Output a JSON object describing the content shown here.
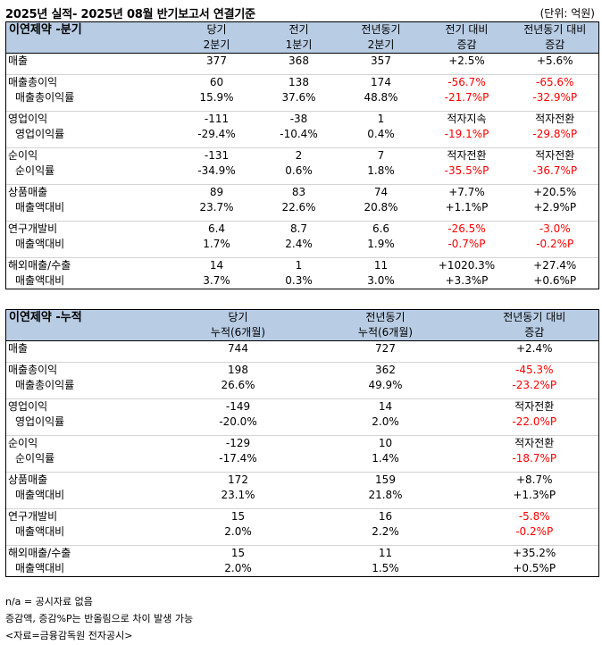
{
  "title": "2025년 실적- 2025년 08월 반기보고서 연결기준",
  "unit": "(단위: 억원)",
  "colors": {
    "header_bg": "#b8cce4",
    "negative": "#ff0000",
    "border": "#000000"
  },
  "table1": {
    "section": "이연제약 -분기",
    "headers": [
      {
        "top": "당기",
        "bottom": "2분기"
      },
      {
        "top": "전기",
        "bottom": "1분기"
      },
      {
        "top": "전년동기",
        "bottom": "2분기"
      },
      {
        "top": "전기 대비",
        "bottom": "증감"
      },
      {
        "top": "전년동기 대비",
        "bottom": "증감"
      }
    ],
    "groups": [
      {
        "rows": [
          {
            "label": "매출",
            "values": [
              "377",
              "368",
              "357",
              "+2.5%",
              "+5.6%"
            ],
            "neg": [
              false,
              false,
              false,
              false,
              false
            ]
          }
        ]
      },
      {
        "rows": [
          {
            "label": "매출총이익",
            "values": [
              "60",
              "138",
              "174",
              "-56.7%",
              "-65.6%"
            ],
            "neg": [
              false,
              false,
              false,
              true,
              true
            ]
          },
          {
            "label": "매출총이익률",
            "values": [
              "15.9%",
              "37.6%",
              "48.8%",
              "-21.7%P",
              "-32.9%P"
            ],
            "neg": [
              false,
              false,
              false,
              true,
              true
            ]
          }
        ]
      },
      {
        "rows": [
          {
            "label": "영업이익",
            "values": [
              "-111",
              "-38",
              "1",
              "적자지속",
              "적자전환"
            ],
            "neg": [
              false,
              false,
              false,
              false,
              false
            ]
          },
          {
            "label": "영업이익률",
            "values": [
              "-29.4%",
              "-10.4%",
              "0.4%",
              "-19.1%P",
              "-29.8%P"
            ],
            "neg": [
              false,
              false,
              false,
              true,
              true
            ]
          }
        ]
      },
      {
        "rows": [
          {
            "label": "순이익",
            "values": [
              "-131",
              "2",
              "7",
              "적자전환",
              "적자전환"
            ],
            "neg": [
              false,
              false,
              false,
              false,
              false
            ]
          },
          {
            "label": "순이익률",
            "values": [
              "-34.9%",
              "0.6%",
              "1.8%",
              "-35.5%P",
              "-36.7%P"
            ],
            "neg": [
              false,
              false,
              false,
              true,
              true
            ]
          }
        ]
      },
      {
        "rows": [
          {
            "label": "상품매출",
            "values": [
              "89",
              "83",
              "74",
              "+7.7%",
              "+20.5%"
            ],
            "neg": [
              false,
              false,
              false,
              false,
              false
            ]
          },
          {
            "label": "매출액대비",
            "values": [
              "23.7%",
              "22.6%",
              "20.8%",
              "+1.1%P",
              "+2.9%P"
            ],
            "neg": [
              false,
              false,
              false,
              false,
              false
            ]
          }
        ]
      },
      {
        "rows": [
          {
            "label": "연구개발비",
            "values": [
              "6.4",
              "8.7",
              "6.6",
              "-26.5%",
              "-3.0%"
            ],
            "neg": [
              false,
              false,
              false,
              true,
              true
            ]
          },
          {
            "label": "매출액대비",
            "values": [
              "1.7%",
              "2.4%",
              "1.9%",
              "-0.7%P",
              "-0.2%P"
            ],
            "neg": [
              false,
              false,
              false,
              true,
              true
            ]
          }
        ]
      },
      {
        "rows": [
          {
            "label": "해외매출/수출",
            "values": [
              "14",
              "1",
              "11",
              "+1020.3%",
              "+27.4%"
            ],
            "neg": [
              false,
              false,
              false,
              false,
              false
            ]
          },
          {
            "label": "매출액대비",
            "values": [
              "3.7%",
              "0.3%",
              "3.0%",
              "+3.3%P",
              "+0.6%P"
            ],
            "neg": [
              false,
              false,
              false,
              false,
              false
            ]
          }
        ]
      }
    ]
  },
  "table2": {
    "section": "이연제약 -누적",
    "headers": [
      {
        "top": "당기",
        "bottom": "누적(6개월)"
      },
      {
        "top": "전년동기",
        "bottom": "누적(6개월)"
      },
      {
        "top": "전년동기 대비",
        "bottom": "증감"
      }
    ],
    "groups": [
      {
        "rows": [
          {
            "label": "매출",
            "values": [
              "744",
              "727",
              "+2.4%"
            ],
            "neg": [
              false,
              false,
              false
            ]
          }
        ]
      },
      {
        "rows": [
          {
            "label": "매출총이익",
            "values": [
              "198",
              "362",
              "-45.3%"
            ],
            "neg": [
              false,
              false,
              true
            ]
          },
          {
            "label": "매출총이익률",
            "values": [
              "26.6%",
              "49.9%",
              "-23.2%P"
            ],
            "neg": [
              false,
              false,
              true
            ]
          }
        ]
      },
      {
        "rows": [
          {
            "label": "영업이익",
            "values": [
              "-149",
              "14",
              "적자전환"
            ],
            "neg": [
              false,
              false,
              false
            ]
          },
          {
            "label": "영업이익률",
            "values": [
              "-20.0%",
              "2.0%",
              "-22.0%P"
            ],
            "neg": [
              false,
              false,
              true
            ]
          }
        ]
      },
      {
        "rows": [
          {
            "label": "순이익",
            "values": [
              "-129",
              "10",
              "적자전환"
            ],
            "neg": [
              false,
              false,
              false
            ]
          },
          {
            "label": "순이익률",
            "values": [
              "-17.4%",
              "1.4%",
              "-18.7%P"
            ],
            "neg": [
              false,
              false,
              true
            ]
          }
        ]
      },
      {
        "rows": [
          {
            "label": "상품매출",
            "values": [
              "172",
              "159",
              "+8.7%"
            ],
            "neg": [
              false,
              false,
              false
            ]
          },
          {
            "label": "매출액대비",
            "values": [
              "23.1%",
              "21.8%",
              "+1.3%P"
            ],
            "neg": [
              false,
              false,
              false
            ]
          }
        ]
      },
      {
        "rows": [
          {
            "label": "연구개발비",
            "values": [
              "15",
              "16",
              "-5.8%"
            ],
            "neg": [
              false,
              false,
              true
            ]
          },
          {
            "label": "매출액대비",
            "values": [
              "2.0%",
              "2.2%",
              "-0.2%P"
            ],
            "neg": [
              false,
              false,
              true
            ]
          }
        ]
      },
      {
        "rows": [
          {
            "label": "해외매출/수출",
            "values": [
              "15",
              "11",
              "+35.2%"
            ],
            "neg": [
              false,
              false,
              false
            ]
          },
          {
            "label": "매출액대비",
            "values": [
              "2.0%",
              "1.5%",
              "+0.5%P"
            ],
            "neg": [
              false,
              false,
              false
            ]
          }
        ]
      }
    ]
  },
  "notes": [
    "n/a = 공시자료 없음",
    "증감액, 증감%P는 반올림으로 차이 발생 가능",
    "<자료=금융감독원 전자공시>"
  ]
}
